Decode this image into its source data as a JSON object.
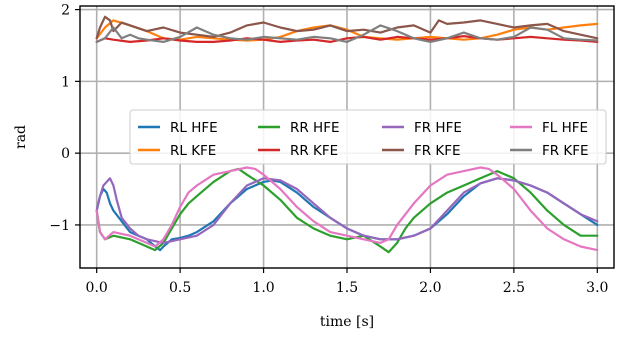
{
  "chart_data": {
    "type": "line",
    "xlabel": "time [s]",
    "ylabel": "rad",
    "xlim": [
      -0.1,
      3.1
    ],
    "ylim": [
      -1.6,
      2.05
    ],
    "xticks": [
      0.0,
      0.5,
      1.0,
      1.5,
      2.0,
      2.5,
      3.0
    ],
    "xtick_labels": [
      "0.0",
      "0.5",
      "1.0",
      "1.5",
      "2.0",
      "2.5",
      "3.0"
    ],
    "yticks": [
      -1,
      0,
      1,
      2
    ],
    "ytick_labels": [
      "−1",
      "0",
      "1",
      "2"
    ],
    "grid": true,
    "legend": {
      "placement": "center",
      "columns": 4
    },
    "series": [
      {
        "name": "RL HFE",
        "color": "#1f77b4",
        "x": [
          0.0,
          0.02,
          0.04,
          0.06,
          0.08,
          0.1,
          0.15,
          0.2,
          0.25,
          0.3,
          0.35,
          0.38,
          0.4,
          0.45,
          0.5,
          0.55,
          0.6,
          0.7,
          0.8,
          0.9,
          1.0,
          1.05,
          1.1,
          1.2,
          1.3,
          1.4,
          1.5,
          1.6,
          1.7,
          1.8,
          1.9,
          2.0,
          2.1,
          2.2,
          2.3,
          2.4,
          2.5,
          2.6,
          2.7,
          2.8,
          2.9,
          3.0
        ],
        "y": [
          -0.8,
          -0.6,
          -0.5,
          -0.55,
          -0.7,
          -0.8,
          -0.95,
          -1.1,
          -1.15,
          -1.2,
          -1.3,
          -1.35,
          -1.3,
          -1.2,
          -1.18,
          -1.15,
          -1.1,
          -0.95,
          -0.7,
          -0.5,
          -0.4,
          -0.38,
          -0.4,
          -0.55,
          -0.75,
          -0.9,
          -1.05,
          -1.15,
          -1.2,
          -1.2,
          -1.15,
          -1.05,
          -0.85,
          -0.6,
          -0.42,
          -0.35,
          -0.38,
          -0.45,
          -0.55,
          -0.7,
          -0.85,
          -1.0
        ]
      },
      {
        "name": "RL KFE",
        "color": "#ff7f0e",
        "x": [
          0.0,
          0.05,
          0.1,
          0.2,
          0.3,
          0.4,
          0.5,
          0.6,
          0.7,
          0.8,
          0.9,
          1.0,
          1.1,
          1.2,
          1.3,
          1.4,
          1.5,
          1.6,
          1.7,
          1.8,
          1.9,
          2.0,
          2.1,
          2.2,
          2.3,
          2.4,
          2.5,
          2.6,
          2.7,
          2.8,
          2.9,
          3.0
        ],
        "y": [
          1.6,
          1.75,
          1.85,
          1.78,
          1.7,
          1.6,
          1.58,
          1.62,
          1.6,
          1.58,
          1.57,
          1.58,
          1.62,
          1.7,
          1.75,
          1.78,
          1.72,
          1.62,
          1.6,
          1.58,
          1.6,
          1.62,
          1.6,
          1.58,
          1.6,
          1.65,
          1.72,
          1.75,
          1.72,
          1.75,
          1.78,
          1.8
        ]
      },
      {
        "name": "RR HFE",
        "color": "#2ca02c",
        "x": [
          0.0,
          0.02,
          0.05,
          0.1,
          0.2,
          0.3,
          0.35,
          0.4,
          0.45,
          0.5,
          0.55,
          0.6,
          0.7,
          0.8,
          0.85,
          0.9,
          1.0,
          1.1,
          1.2,
          1.3,
          1.4,
          1.5,
          1.6,
          1.7,
          1.75,
          1.8,
          1.85,
          1.9,
          2.0,
          2.1,
          2.2,
          2.3,
          2.4,
          2.5,
          2.6,
          2.7,
          2.8,
          2.9,
          3.0
        ],
        "y": [
          -0.8,
          -1.1,
          -1.2,
          -1.15,
          -1.2,
          -1.3,
          -1.35,
          -1.25,
          -1.05,
          -0.85,
          -0.7,
          -0.6,
          -0.4,
          -0.25,
          -0.22,
          -0.3,
          -0.45,
          -0.65,
          -0.9,
          -1.05,
          -1.15,
          -1.2,
          -1.15,
          -1.3,
          -1.38,
          -1.25,
          -1.05,
          -0.9,
          -0.7,
          -0.55,
          -0.45,
          -0.35,
          -0.25,
          -0.35,
          -0.55,
          -0.8,
          -1.0,
          -1.15,
          -1.15
        ]
      },
      {
        "name": "RR KFE",
        "color": "#d62728",
        "x": [
          0.0,
          0.05,
          0.1,
          0.2,
          0.3,
          0.4,
          0.5,
          0.6,
          0.7,
          0.8,
          0.9,
          1.0,
          1.1,
          1.2,
          1.3,
          1.4,
          1.5,
          1.6,
          1.7,
          1.8,
          1.9,
          2.0,
          2.1,
          2.2,
          2.3,
          2.4,
          2.5,
          2.6,
          2.7,
          2.8,
          2.9,
          3.0
        ],
        "y": [
          1.55,
          1.6,
          1.58,
          1.55,
          1.57,
          1.6,
          1.57,
          1.55,
          1.55,
          1.57,
          1.6,
          1.58,
          1.55,
          1.57,
          1.58,
          1.55,
          1.6,
          1.62,
          1.58,
          1.62,
          1.6,
          1.58,
          1.6,
          1.63,
          1.6,
          1.58,
          1.6,
          1.62,
          1.6,
          1.58,
          1.57,
          1.55
        ]
      },
      {
        "name": "FR HFE",
        "color": "#9467bd",
        "x": [
          0.0,
          0.02,
          0.04,
          0.06,
          0.08,
          0.1,
          0.12,
          0.15,
          0.2,
          0.25,
          0.3,
          0.4,
          0.5,
          0.6,
          0.7,
          0.8,
          0.9,
          1.0,
          1.1,
          1.2,
          1.3,
          1.4,
          1.5,
          1.6,
          1.7,
          1.8,
          1.9,
          2.0,
          2.1,
          2.2,
          2.3,
          2.4,
          2.5,
          2.6,
          2.7,
          2.8,
          2.9,
          3.0
        ],
        "y": [
          -0.8,
          -0.6,
          -0.45,
          -0.4,
          -0.35,
          -0.45,
          -0.65,
          -0.9,
          -1.05,
          -1.15,
          -1.2,
          -1.25,
          -1.2,
          -1.15,
          -1.0,
          -0.7,
          -0.45,
          -0.35,
          -0.38,
          -0.5,
          -0.7,
          -0.9,
          -1.05,
          -1.15,
          -1.2,
          -1.2,
          -1.15,
          -1.05,
          -0.8,
          -0.55,
          -0.42,
          -0.35,
          -0.38,
          -0.45,
          -0.55,
          -0.7,
          -0.85,
          -0.95
        ]
      },
      {
        "name": "FR KFE",
        "color": "#8c564b",
        "x": [
          0.0,
          0.02,
          0.05,
          0.08,
          0.1,
          0.15,
          0.2,
          0.3,
          0.4,
          0.5,
          0.6,
          0.7,
          0.8,
          0.9,
          1.0,
          1.1,
          1.2,
          1.3,
          1.4,
          1.5,
          1.6,
          1.7,
          1.8,
          1.9,
          2.0,
          2.05,
          2.1,
          2.2,
          2.3,
          2.4,
          2.5,
          2.6,
          2.7,
          2.8,
          2.9,
          3.0
        ],
        "y": [
          1.6,
          1.75,
          1.9,
          1.85,
          1.7,
          1.82,
          1.78,
          1.7,
          1.75,
          1.68,
          1.65,
          1.62,
          1.68,
          1.78,
          1.82,
          1.75,
          1.7,
          1.72,
          1.78,
          1.7,
          1.72,
          1.68,
          1.75,
          1.78,
          1.68,
          1.85,
          1.8,
          1.82,
          1.85,
          1.8,
          1.75,
          1.78,
          1.8,
          1.7,
          1.65,
          1.6
        ]
      },
      {
        "name": "FL HFE",
        "color": "#e377c2",
        "x": [
          0.0,
          0.02,
          0.05,
          0.1,
          0.2,
          0.3,
          0.35,
          0.4,
          0.45,
          0.5,
          0.55,
          0.6,
          0.7,
          0.8,
          0.9,
          0.95,
          1.0,
          1.1,
          1.2,
          1.3,
          1.4,
          1.5,
          1.6,
          1.7,
          1.75,
          1.8,
          1.9,
          2.0,
          2.1,
          2.2,
          2.3,
          2.35,
          2.4,
          2.5,
          2.6,
          2.7,
          2.8,
          2.9,
          3.0
        ],
        "y": [
          -0.8,
          -1.1,
          -1.2,
          -1.1,
          -1.15,
          -1.25,
          -1.3,
          -1.2,
          -1.0,
          -0.75,
          -0.55,
          -0.45,
          -0.3,
          -0.25,
          -0.2,
          -0.22,
          -0.3,
          -0.5,
          -0.75,
          -0.95,
          -1.1,
          -1.15,
          -1.2,
          -1.25,
          -1.2,
          -1.0,
          -0.7,
          -0.45,
          -0.3,
          -0.25,
          -0.2,
          -0.22,
          -0.3,
          -0.5,
          -0.8,
          -1.05,
          -1.2,
          -1.3,
          -1.35
        ]
      },
      {
        "name": "FR KFE",
        "color": "#7f7f7f",
        "x": [
          0.0,
          0.05,
          0.1,
          0.15,
          0.2,
          0.25,
          0.3,
          0.4,
          0.5,
          0.6,
          0.7,
          0.8,
          0.9,
          1.0,
          1.1,
          1.2,
          1.3,
          1.4,
          1.5,
          1.6,
          1.7,
          1.8,
          1.9,
          2.0,
          2.1,
          2.2,
          2.3,
          2.4,
          2.5,
          2.6,
          2.7,
          2.8,
          2.9,
          3.0
        ],
        "y": [
          1.55,
          1.6,
          1.75,
          1.6,
          1.65,
          1.6,
          1.58,
          1.55,
          1.62,
          1.75,
          1.65,
          1.6,
          1.58,
          1.62,
          1.6,
          1.58,
          1.62,
          1.6,
          1.55,
          1.65,
          1.78,
          1.7,
          1.6,
          1.55,
          1.6,
          1.68,
          1.6,
          1.58,
          1.62,
          1.75,
          1.72,
          1.6,
          1.58,
          1.57
        ]
      }
    ]
  }
}
